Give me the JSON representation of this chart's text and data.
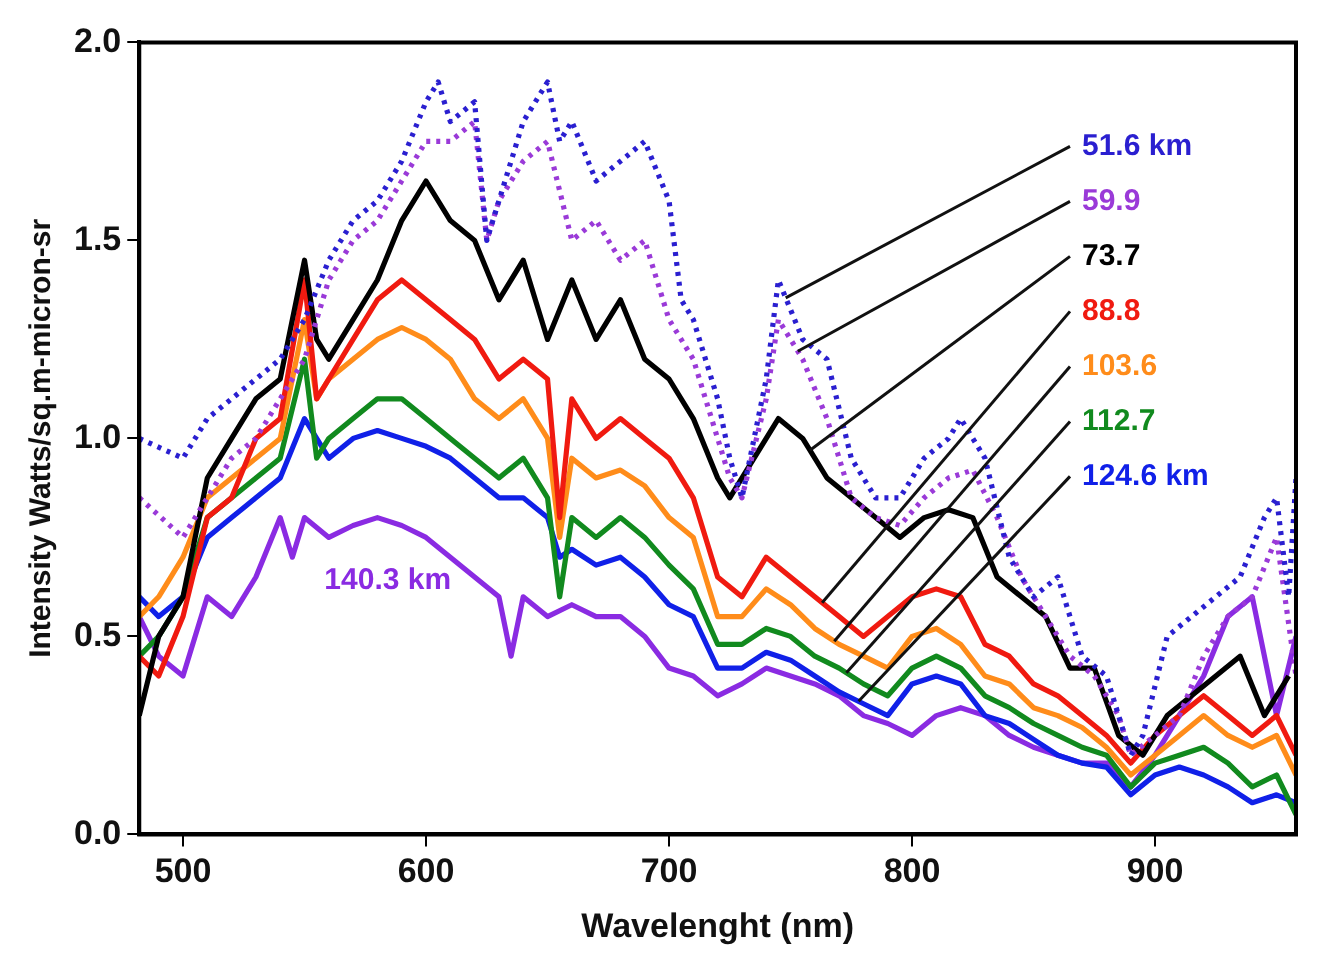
{
  "chart_data": {
    "type": "line",
    "xlabel": "Wavelenght (nm)",
    "ylabel": "Intensity Watts/sq.m-micron-sr",
    "xlim": [
      482,
      958
    ],
    "ylim": [
      0,
      2.0
    ],
    "xticks": [
      500,
      600,
      700,
      800,
      900
    ],
    "yticks": [
      {
        "value": 0,
        "label": "0.0"
      },
      {
        "value": 0.5,
        "label": "0.5"
      },
      {
        "value": 1,
        "label": "1.0"
      },
      {
        "value": 1.5,
        "label": "1.5"
      },
      {
        "value": 2,
        "label": "2.0"
      }
    ],
    "grid": false,
    "legend": false,
    "marker": "none",
    "series": [
      {
        "name": "51.6 km",
        "color": "#2a1fd0",
        "line_style": "dotted",
        "x": [
          482,
          500,
          510,
          520,
          530,
          540,
          550,
          560,
          570,
          580,
          590,
          600,
          605,
          610,
          620,
          625,
          630,
          640,
          650,
          655,
          660,
          670,
          680,
          690,
          700,
          705,
          710,
          720,
          725,
          730,
          740,
          745,
          755,
          765,
          775,
          785,
          795,
          805,
          815,
          820,
          830,
          840,
          850,
          860,
          870,
          880,
          885,
          890,
          895,
          905,
          915,
          925,
          935,
          945,
          950,
          955,
          958
        ],
        "values": [
          1.0,
          0.95,
          1.05,
          1.1,
          1.15,
          1.2,
          1.3,
          1.45,
          1.55,
          1.6,
          1.7,
          1.85,
          1.9,
          1.8,
          1.85,
          1.5,
          1.6,
          1.8,
          1.9,
          1.75,
          1.8,
          1.65,
          1.7,
          1.75,
          1.6,
          1.35,
          1.3,
          1.1,
          0.95,
          0.85,
          1.15,
          1.4,
          1.25,
          1.2,
          0.95,
          0.85,
          0.85,
          0.95,
          1.0,
          1.05,
          0.95,
          0.7,
          0.6,
          0.65,
          0.45,
          0.4,
          0.3,
          0.2,
          0.25,
          0.5,
          0.55,
          0.6,
          0.65,
          0.8,
          0.85,
          0.6,
          0.9
        ]
      },
      {
        "name": "59.9",
        "color": "#9a3ad8",
        "line_style": "dotted",
        "x": [
          482,
          500,
          510,
          520,
          530,
          540,
          550,
          560,
          570,
          580,
          590,
          600,
          610,
          620,
          625,
          630,
          640,
          650,
          660,
          670,
          680,
          690,
          700,
          710,
          720,
          725,
          730,
          740,
          745,
          755,
          765,
          775,
          785,
          795,
          805,
          815,
          825,
          835,
          845,
          855,
          865,
          875,
          885,
          890,
          900,
          910,
          920,
          930,
          940,
          950,
          958
        ],
        "values": [
          0.85,
          0.75,
          0.85,
          0.95,
          1.0,
          1.1,
          1.2,
          1.4,
          1.5,
          1.55,
          1.65,
          1.75,
          1.75,
          1.8,
          1.5,
          1.6,
          1.7,
          1.75,
          1.5,
          1.55,
          1.45,
          1.5,
          1.3,
          1.2,
          1.0,
          0.9,
          0.85,
          1.1,
          1.3,
          1.2,
          1.05,
          0.85,
          0.8,
          0.78,
          0.85,
          0.9,
          0.92,
          0.8,
          0.65,
          0.55,
          0.45,
          0.4,
          0.3,
          0.2,
          0.25,
          0.3,
          0.45,
          0.55,
          0.6,
          0.75,
          0.4
        ]
      },
      {
        "name": "73.7",
        "color": "#000000",
        "line_style": "solid",
        "x": [
          482,
          490,
          500,
          510,
          520,
          530,
          540,
          550,
          555,
          560,
          570,
          580,
          590,
          600,
          610,
          620,
          630,
          640,
          650,
          660,
          670,
          680,
          690,
          700,
          710,
          720,
          725,
          735,
          745,
          755,
          765,
          775,
          785,
          795,
          805,
          815,
          825,
          835,
          845,
          855,
          865,
          875,
          885,
          895,
          905,
          915,
          925,
          935,
          945,
          955
        ],
        "values": [
          0.3,
          0.5,
          0.6,
          0.9,
          1.0,
          1.1,
          1.15,
          1.45,
          1.25,
          1.2,
          1.3,
          1.4,
          1.55,
          1.65,
          1.55,
          1.5,
          1.35,
          1.45,
          1.25,
          1.4,
          1.25,
          1.35,
          1.2,
          1.15,
          1.05,
          0.9,
          0.85,
          0.95,
          1.05,
          1.0,
          0.9,
          0.85,
          0.8,
          0.75,
          0.8,
          0.82,
          0.8,
          0.65,
          0.6,
          0.55,
          0.42,
          0.42,
          0.25,
          0.2,
          0.3,
          0.35,
          0.4,
          0.45,
          0.3,
          0.4
        ]
      },
      {
        "name": "88.8",
        "color": "#f01a10",
        "line_style": "solid",
        "x": [
          482,
          490,
          500,
          510,
          520,
          530,
          540,
          550,
          555,
          560,
          570,
          580,
          590,
          600,
          610,
          620,
          630,
          640,
          650,
          655,
          660,
          670,
          680,
          690,
          700,
          710,
          720,
          730,
          740,
          750,
          760,
          770,
          780,
          790,
          800,
          810,
          820,
          830,
          840,
          850,
          860,
          870,
          880,
          890,
          900,
          910,
          920,
          930,
          940,
          950,
          958
        ],
        "values": [
          0.45,
          0.4,
          0.55,
          0.8,
          0.85,
          1.0,
          1.05,
          1.4,
          1.1,
          1.15,
          1.25,
          1.35,
          1.4,
          1.35,
          1.3,
          1.25,
          1.15,
          1.2,
          1.15,
          0.8,
          1.1,
          1.0,
          1.05,
          1.0,
          0.95,
          0.85,
          0.65,
          0.6,
          0.7,
          0.65,
          0.6,
          0.55,
          0.5,
          0.55,
          0.6,
          0.62,
          0.6,
          0.48,
          0.45,
          0.38,
          0.35,
          0.3,
          0.25,
          0.18,
          0.25,
          0.3,
          0.35,
          0.3,
          0.25,
          0.3,
          0.2
        ]
      },
      {
        "name": "103.6",
        "color": "#ff8c1a",
        "line_style": "solid",
        "x": [
          482,
          490,
          500,
          510,
          520,
          530,
          540,
          550,
          555,
          560,
          570,
          580,
          590,
          600,
          610,
          620,
          630,
          640,
          650,
          655,
          660,
          670,
          680,
          690,
          700,
          710,
          720,
          730,
          740,
          750,
          760,
          770,
          780,
          790,
          800,
          810,
          820,
          830,
          840,
          850,
          860,
          870,
          880,
          890,
          900,
          910,
          920,
          930,
          940,
          950,
          958
        ],
        "values": [
          0.55,
          0.6,
          0.7,
          0.85,
          0.9,
          0.95,
          1.0,
          1.3,
          1.1,
          1.15,
          1.2,
          1.25,
          1.28,
          1.25,
          1.2,
          1.1,
          1.05,
          1.1,
          1.0,
          0.75,
          0.95,
          0.9,
          0.92,
          0.88,
          0.8,
          0.75,
          0.55,
          0.55,
          0.62,
          0.58,
          0.52,
          0.48,
          0.45,
          0.42,
          0.5,
          0.52,
          0.48,
          0.4,
          0.38,
          0.32,
          0.3,
          0.27,
          0.22,
          0.15,
          0.2,
          0.25,
          0.3,
          0.25,
          0.22,
          0.25,
          0.15
        ]
      },
      {
        "name": "112.7",
        "color": "#118a1e",
        "line_style": "solid",
        "x": [
          482,
          490,
          500,
          510,
          520,
          530,
          540,
          550,
          555,
          560,
          570,
          580,
          590,
          600,
          610,
          620,
          630,
          640,
          650,
          655,
          660,
          670,
          680,
          690,
          700,
          710,
          720,
          730,
          740,
          750,
          760,
          770,
          780,
          790,
          800,
          810,
          820,
          830,
          840,
          850,
          860,
          870,
          880,
          890,
          900,
          910,
          920,
          930,
          940,
          950,
          958
        ],
        "values": [
          0.45,
          0.5,
          0.6,
          0.8,
          0.85,
          0.9,
          0.95,
          1.2,
          0.95,
          1.0,
          1.05,
          1.1,
          1.1,
          1.05,
          1.0,
          0.95,
          0.9,
          0.95,
          0.85,
          0.6,
          0.8,
          0.75,
          0.8,
          0.75,
          0.68,
          0.62,
          0.48,
          0.48,
          0.52,
          0.5,
          0.45,
          0.42,
          0.38,
          0.35,
          0.42,
          0.45,
          0.42,
          0.35,
          0.32,
          0.28,
          0.25,
          0.22,
          0.2,
          0.12,
          0.18,
          0.2,
          0.22,
          0.18,
          0.12,
          0.15,
          0.05
        ]
      },
      {
        "name": "124.6 km",
        "color": "#1020e8",
        "line_style": "solid",
        "x": [
          482,
          490,
          500,
          510,
          520,
          530,
          540,
          550,
          560,
          570,
          580,
          590,
          600,
          610,
          620,
          630,
          640,
          650,
          655,
          660,
          670,
          680,
          690,
          700,
          710,
          720,
          730,
          740,
          750,
          760,
          770,
          780,
          790,
          800,
          810,
          820,
          830,
          840,
          850,
          860,
          870,
          880,
          890,
          900,
          910,
          920,
          930,
          940,
          950,
          958
        ],
        "values": [
          0.6,
          0.55,
          0.6,
          0.75,
          0.8,
          0.85,
          0.9,
          1.05,
          0.95,
          1.0,
          1.02,
          1.0,
          0.98,
          0.95,
          0.9,
          0.85,
          0.85,
          0.8,
          0.7,
          0.72,
          0.68,
          0.7,
          0.65,
          0.58,
          0.55,
          0.42,
          0.42,
          0.46,
          0.44,
          0.4,
          0.36,
          0.33,
          0.3,
          0.38,
          0.4,
          0.38,
          0.3,
          0.28,
          0.24,
          0.2,
          0.18,
          0.17,
          0.1,
          0.15,
          0.17,
          0.15,
          0.12,
          0.08,
          0.1,
          0.08
        ]
      },
      {
        "name": "140.3 km",
        "color": "#8a2be2",
        "line_style": "solid",
        "x": [
          482,
          490,
          500,
          510,
          520,
          530,
          540,
          545,
          550,
          560,
          570,
          580,
          590,
          600,
          610,
          620,
          630,
          635,
          640,
          650,
          660,
          670,
          680,
          690,
          700,
          710,
          720,
          730,
          740,
          750,
          760,
          770,
          780,
          790,
          800,
          810,
          820,
          830,
          840,
          850,
          860,
          870,
          880,
          890,
          900,
          910,
          920,
          930,
          940,
          950,
          958
        ],
        "values": [
          0.55,
          0.45,
          0.4,
          0.6,
          0.55,
          0.65,
          0.8,
          0.7,
          0.8,
          0.75,
          0.78,
          0.8,
          0.78,
          0.75,
          0.7,
          0.65,
          0.6,
          0.45,
          0.6,
          0.55,
          0.58,
          0.55,
          0.55,
          0.5,
          0.42,
          0.4,
          0.35,
          0.38,
          0.42,
          0.4,
          0.38,
          0.35,
          0.3,
          0.28,
          0.25,
          0.3,
          0.32,
          0.3,
          0.25,
          0.22,
          0.2,
          0.18,
          0.18,
          0.12,
          0.2,
          0.3,
          0.4,
          0.55,
          0.6,
          0.3,
          0.5
        ]
      }
    ]
  }
}
